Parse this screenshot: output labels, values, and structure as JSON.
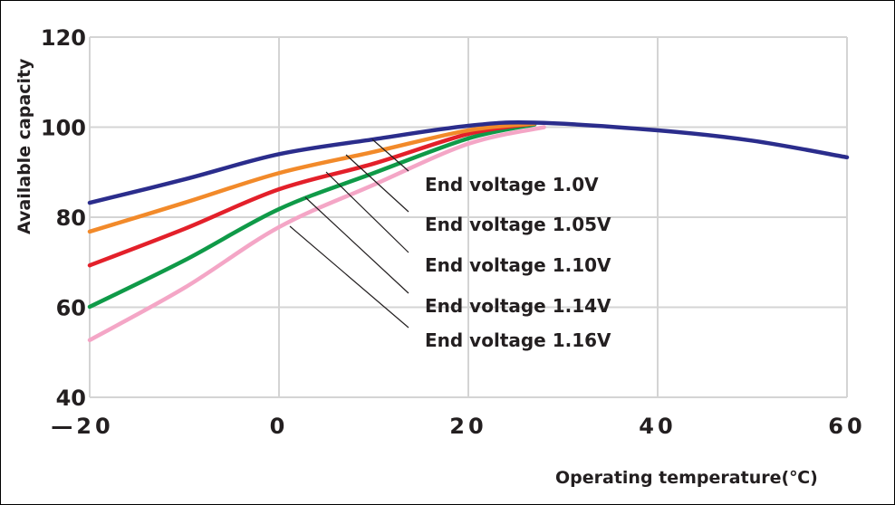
{
  "chart_data": {
    "type": "line",
    "title": "",
    "xlabel": "Operating temperature(℃)",
    "ylabel": "Available  capacity",
    "xlim": [
      -20,
      60
    ],
    "ylim": [
      40,
      120
    ],
    "xticks": [
      "—20",
      "0",
      "20",
      "40",
      "60"
    ],
    "yticks": [
      "120",
      "100",
      "80",
      "60",
      "40"
    ],
    "grid": true,
    "legend": "inline labels with leader lines, right of center",
    "series": [
      {
        "name": "End voltage 1.0V",
        "color": "#2b2d8c",
        "x": [
          -20,
          -10,
          0,
          10,
          20,
          27,
          40,
          50,
          60
        ],
        "y": [
          83.2,
          88.4,
          94.0,
          97.3,
          100.3,
          101.0,
          99.3,
          97.0,
          93.3
        ]
      },
      {
        "name": "End voltage 1.05V",
        "color": "#f28a2a",
        "x": [
          -20,
          -10,
          0,
          10,
          20,
          27
        ],
        "y": [
          76.8,
          83.2,
          89.8,
          94.5,
          99.3,
          100.8
        ]
      },
      {
        "name": "End voltage 1.10V",
        "color": "#e3202a",
        "x": [
          -20,
          -10,
          0,
          10,
          20,
          27
        ],
        "y": [
          69.3,
          77.4,
          86.2,
          91.9,
          98.5,
          100.8
        ]
      },
      {
        "name": "End voltage 1.14V",
        "color": "#0f9a48",
        "x": [
          -20,
          -10,
          0,
          10,
          20,
          27
        ],
        "y": [
          60.1,
          70.4,
          81.8,
          89.8,
          97.5,
          100.6
        ]
      },
      {
        "name": "End voltage 1.16V",
        "color": "#f4a6c6",
        "x": [
          -20,
          -10,
          0,
          10,
          20,
          28
        ],
        "y": [
          52.7,
          64.3,
          77.8,
          87.2,
          96.3,
          100.0
        ]
      }
    ]
  }
}
